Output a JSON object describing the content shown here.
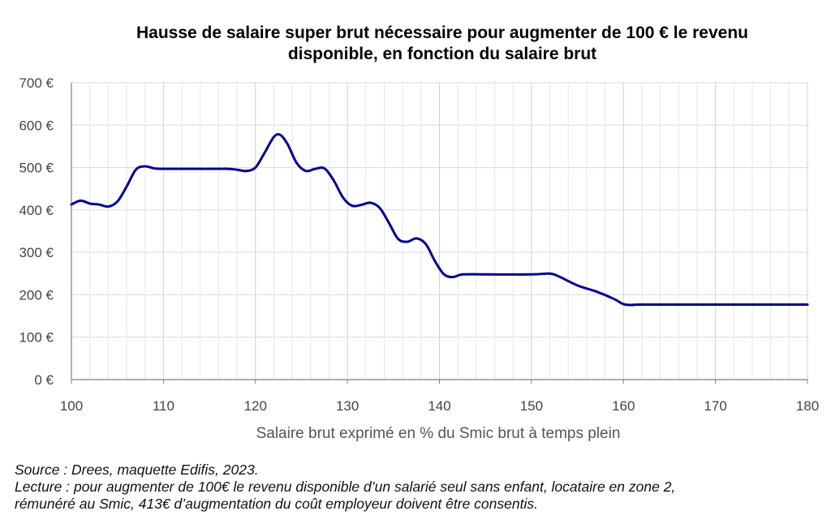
{
  "chart_data": {
    "type": "line",
    "title": "Hausse de salaire super brut nécessaire pour augmenter de 100 € le revenu disponible, en fonction du salaire brut",
    "title_lines": [
      "Hausse de salaire super brut nécessaire pour augmenter de 100 € le revenu",
      "disponible, en fonction du salaire brut"
    ],
    "xlabel": "Salaire brut exprimé en % du Smic brut à temps plein",
    "ylabel": "",
    "xlim": [
      100,
      180
    ],
    "ylim": [
      0,
      700
    ],
    "x_ticks": [
      100,
      110,
      120,
      130,
      140,
      150,
      160,
      170,
      180
    ],
    "x_tick_labels": [
      "100",
      "110",
      "120",
      "130",
      "140",
      "150",
      "160",
      "170",
      "180"
    ],
    "y_ticks": [
      0,
      100,
      200,
      300,
      400,
      500,
      600,
      700
    ],
    "y_tick_labels": [
      "0 €",
      "100 €",
      "200 €",
      "300 €",
      "400 €",
      "500 €",
      "600 €",
      "700 €"
    ],
    "grid": true,
    "line_color": "#00008f",
    "series": [
      {
        "x": [
          100,
          101,
          102,
          103,
          104,
          105,
          106,
          107,
          108,
          109,
          110,
          112,
          114,
          116,
          117,
          118,
          119,
          120,
          121,
          122,
          122.7,
          123.5,
          124.5,
          125.5,
          126.5,
          127.5,
          128.5,
          129.5,
          130.5,
          131.5,
          132.5,
          133.5,
          134.5,
          135.5,
          136.5,
          137.5,
          138.5,
          139.5,
          140.5,
          141.5,
          142.5,
          145,
          150,
          152,
          153,
          155,
          157,
          159,
          160,
          161,
          162,
          170,
          180
        ],
        "values": [
          413,
          422,
          415,
          413,
          408,
          420,
          455,
          495,
          503,
          498,
          497,
          497,
          497,
          497,
          497,
          495,
          492,
          500,
          535,
          572,
          577,
          555,
          510,
          492,
          497,
          498,
          470,
          430,
          410,
          412,
          417,
          405,
          370,
          332,
          325,
          333,
          320,
          280,
          248,
          242,
          248,
          248,
          248,
          250,
          243,
          222,
          208,
          190,
          178,
          176,
          177,
          177,
          177
        ]
      }
    ]
  },
  "notes": {
    "source": "Source : Drees, maquette Edifis, 2023.",
    "lecture_line1": "Lecture : pour augmenter de 100€ le revenu disponible d’un salarié seul sans enfant, locataire en zone 2,",
    "lecture_line2": "rémunéré au Smic, 413€ d’augmentation du coût employeur doivent être consentis."
  }
}
